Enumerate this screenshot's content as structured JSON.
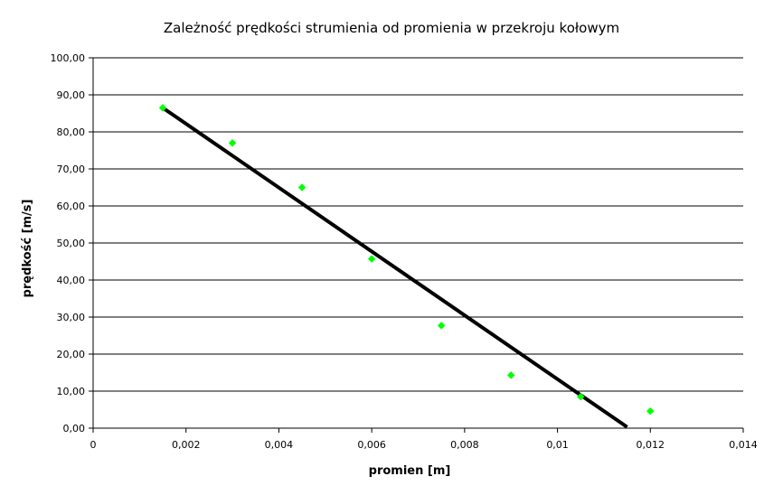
{
  "chart_data": {
    "type": "scatter",
    "title": "Zależność prędkości strumienia od promienia w przekroju kołowym",
    "xlabel": "promien [m]",
    "ylabel": "prędkość [m/s]",
    "xlim": [
      0,
      0.014
    ],
    "ylim": [
      0,
      100
    ],
    "x_ticks": [
      0,
      0.002,
      0.004,
      0.006,
      0.008,
      0.01,
      0.012,
      0.014
    ],
    "x_tick_labels": [
      "0",
      "0,002",
      "0,004",
      "0,006",
      "0,008",
      "0,01",
      "0,012",
      "0,014"
    ],
    "y_ticks": [
      0,
      10,
      20,
      30,
      40,
      50,
      60,
      70,
      80,
      90,
      100
    ],
    "y_tick_labels": [
      "0,00",
      "10,00",
      "20,00",
      "30,00",
      "40,00",
      "50,00",
      "60,00",
      "70,00",
      "80,00",
      "90,00",
      "100,00"
    ],
    "grid": "horizontal",
    "legend": "none",
    "series": [
      {
        "marker": "diamond",
        "color": "#00ff00",
        "x": [
          0.0015,
          0.003,
          0.0045,
          0.006,
          0.0075,
          0.009,
          0.0105,
          0.012
        ],
        "y": [
          86.5,
          77.0,
          65.0,
          45.7,
          27.7,
          14.3,
          8.5,
          4.6
        ]
      }
    ],
    "trendline": {
      "type": "linear",
      "color": "#000000",
      "x": [
        0.0015,
        0.0115
      ],
      "y": [
        86.5,
        0.3
      ]
    }
  }
}
